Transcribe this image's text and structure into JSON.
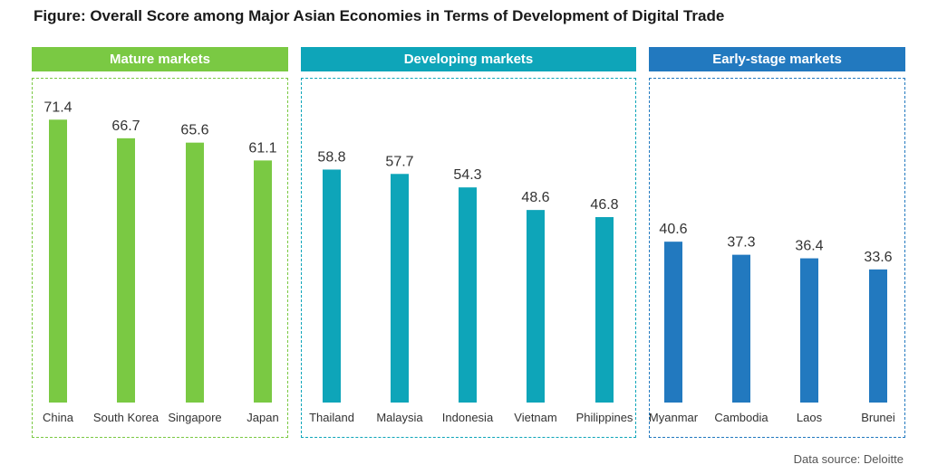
{
  "title": "Figure: Overall Score among Major Asian Economies in Terms of Development of Digital Trade",
  "source": "Data source: Deloitte",
  "colors": {
    "mature": "#7ac943",
    "developing": "#0ea5b9",
    "early": "#2279bf",
    "text": "#333333"
  },
  "chart_data": {
    "type": "bar",
    "title": "Figure: Overall Score among Major Asian Economies in Terms of Development of Digital Trade",
    "xlabel": "",
    "ylabel": "",
    "ylim": [
      0,
      75
    ],
    "grid": false,
    "groups": [
      {
        "name": "Mature markets",
        "color": "#7ac943",
        "categories": [
          "China",
          "South Korea",
          "Singapore",
          "Japan"
        ],
        "values": [
          71.4,
          66.7,
          65.6,
          61.1
        ]
      },
      {
        "name": "Developing markets",
        "color": "#0ea5b9",
        "categories": [
          "Thailand",
          "Malaysia",
          "Indonesia",
          "Vietnam",
          "Philippines"
        ],
        "values": [
          58.8,
          57.7,
          54.3,
          48.6,
          46.8
        ]
      },
      {
        "name": "Early-stage markets",
        "color": "#2279bf",
        "categories": [
          "Myanmar",
          "Cambodia",
          "Laos",
          "Brunei"
        ],
        "values": [
          40.6,
          37.3,
          36.4,
          33.6
        ]
      }
    ]
  }
}
